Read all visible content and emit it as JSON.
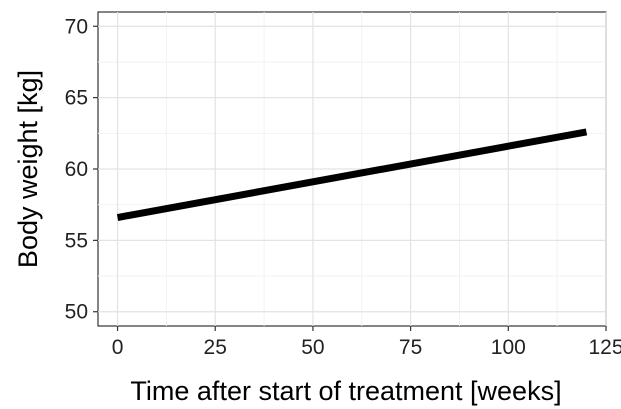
{
  "chart_data": {
    "type": "line",
    "title": "",
    "xlabel": "Time after start of treatment [weeks]",
    "ylabel": "Body weight [kg]",
    "xlim": [
      -5,
      125
    ],
    "ylim": [
      49,
      71
    ],
    "x_ticks": [
      0,
      25,
      50,
      75,
      100,
      125
    ],
    "y_ticks": [
      50,
      55,
      60,
      65,
      70
    ],
    "x_tick_labels": [
      "0",
      "25",
      "50",
      "75",
      "100",
      "125"
    ],
    "y_tick_labels": [
      "50",
      "55",
      "60",
      "65",
      "70"
    ],
    "grid": true,
    "series": [
      {
        "x": [
          0,
          120
        ],
        "y": [
          56.6,
          62.6
        ],
        "color": "#000000"
      }
    ]
  }
}
